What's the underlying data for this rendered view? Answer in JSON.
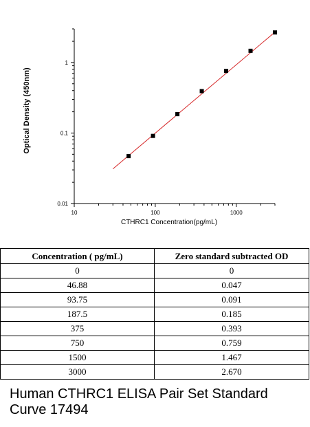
{
  "chart_data": {
    "type": "scatter",
    "xlabel": "CTHRC1  Concentration(pg/mL)",
    "ylabel": "Optical Density (450nm)",
    "x_scale": "log",
    "y_scale": "log",
    "xlim": [
      10,
      3000
    ],
    "ylim": [
      0.01,
      3
    ],
    "x_ticks": [
      "10",
      "100",
      "1000"
    ],
    "y_ticks": [
      "0.01",
      "0.1",
      "1"
    ],
    "points": [
      {
        "x": 46.88,
        "y": 0.047
      },
      {
        "x": 93.75,
        "y": 0.091
      },
      {
        "x": 187.5,
        "y": 0.185
      },
      {
        "x": 375,
        "y": 0.393
      },
      {
        "x": 750,
        "y": 0.759
      },
      {
        "x": 1500,
        "y": 1.467
      },
      {
        "x": 3000,
        "y": 2.67
      }
    ],
    "fit_line": {
      "x": [
        30,
        3000
      ],
      "y": [
        0.031,
        2.7
      ]
    },
    "marker_color": "#000000",
    "line_color": "#d62728",
    "grid": false
  },
  "table": {
    "headers": [
      "Concentration ( pg/mL)",
      "Zero standard subtracted OD"
    ],
    "rows": [
      [
        "0",
        "0"
      ],
      [
        "46.88",
        "0.047"
      ],
      [
        "93.75",
        "0.091"
      ],
      [
        "187.5",
        "0.185"
      ],
      [
        "375",
        "0.393"
      ],
      [
        "750",
        "0.759"
      ],
      [
        "1500",
        "1.467"
      ],
      [
        "3000",
        "2.670"
      ]
    ]
  },
  "caption": "Human CTHRC1 ELISA Pair Set Standard Curve 17494"
}
